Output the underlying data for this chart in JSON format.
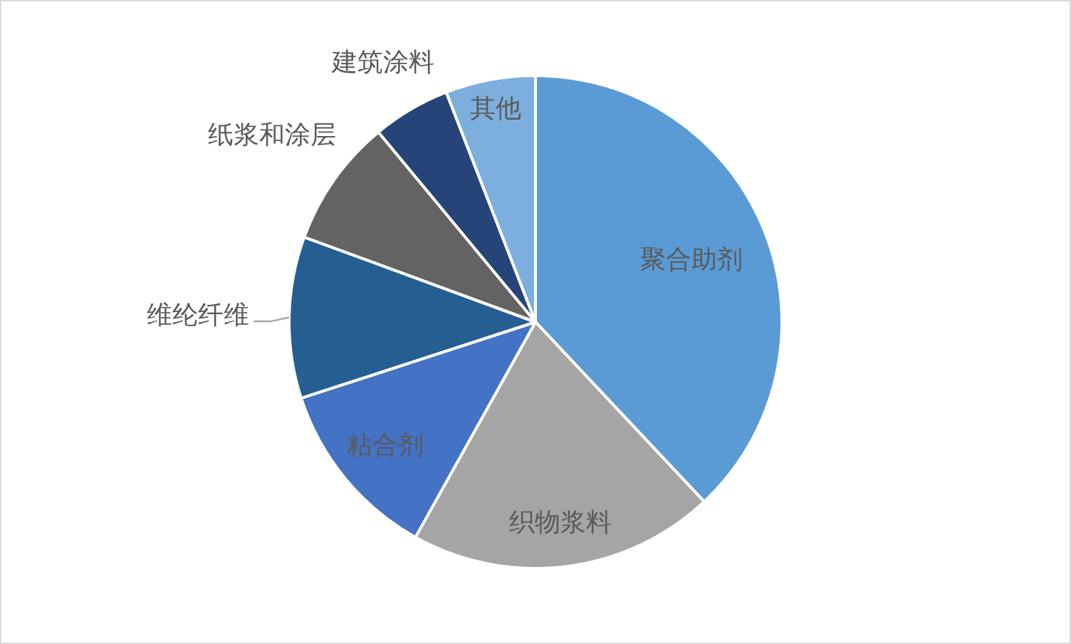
{
  "chart_data": {
    "type": "pie",
    "categories": [
      "聚合助剂",
      "织物浆料",
      "粘合剂",
      "维纶纤维",
      "纸浆和涂层",
      "建筑涂料",
      "其他"
    ],
    "values": [
      38.0,
      20.1,
      11.9,
      10.6,
      8.4,
      5.1,
      5.9
    ],
    "colors": [
      "#5b9bd5",
      "#a5a5a5",
      "#4472c4",
      "#255e91",
      "#636363",
      "#264478",
      "#7cafdd"
    ]
  }
}
